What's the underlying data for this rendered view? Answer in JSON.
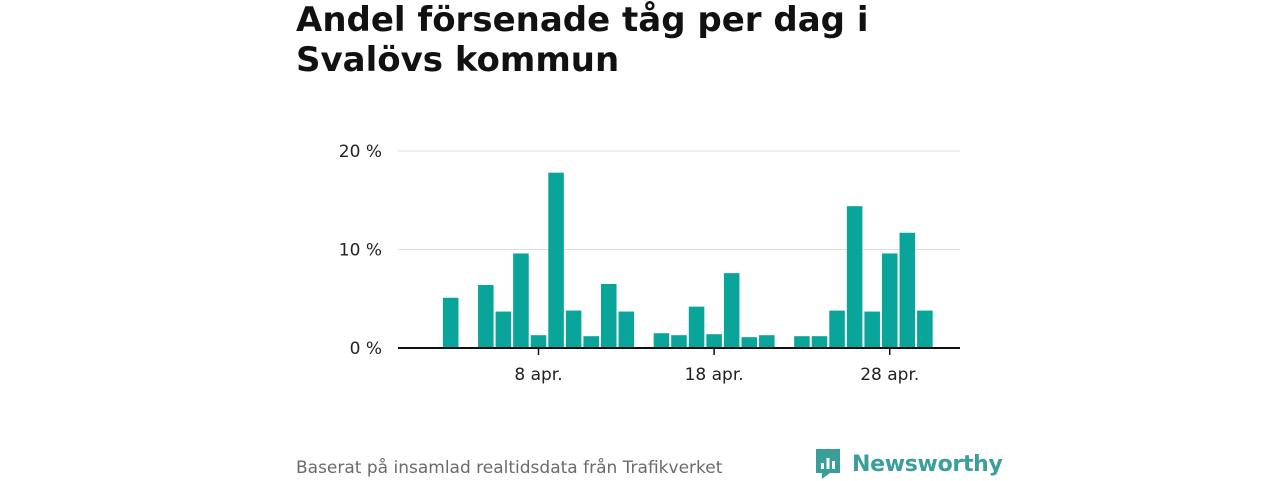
{
  "title": "Andel försenade tåg per dag i Svalövs kommun",
  "footer": {
    "source": "Baserat på insamlad realtidsdata från Trafikverket",
    "brand": "Newsworthy"
  },
  "colors": {
    "bar": "#0aa59a",
    "grid": "#dddddd",
    "axis": "#111111",
    "brand": "#3a9f98"
  },
  "chart_data": {
    "type": "bar",
    "title": "Andel försenade tåg per dag i Svalövs kommun",
    "xlabel": "",
    "ylabel": "",
    "x_unit": "day of April",
    "xlim": [
      0,
      32
    ],
    "ylim": [
      0,
      20
    ],
    "yticks": [
      0,
      10,
      20
    ],
    "ytick_labels": [
      "0 %",
      "10 %",
      "20 %"
    ],
    "xticks": [
      8,
      18,
      28
    ],
    "xtick_labels": [
      "8 apr.",
      "18 apr.",
      "28 apr."
    ],
    "grid": true,
    "series": [
      {
        "days": [
          3,
          5,
          6,
          7,
          8,
          9,
          10,
          11,
          12,
          13,
          15,
          16,
          17,
          18,
          19,
          20,
          21,
          23,
          24,
          25,
          26,
          27,
          28,
          29,
          30
        ],
        "values": [
          5.1,
          6.4,
          3.7,
          9.6,
          1.3,
          17.8,
          3.8,
          1.2,
          6.5,
          3.7,
          1.5,
          1.3,
          4.2,
          1.4,
          7.6,
          1.1,
          1.3,
          1.2,
          1.2,
          3.8,
          14.4,
          3.7,
          9.6,
          11.7,
          3.8
        ]
      }
    ]
  }
}
